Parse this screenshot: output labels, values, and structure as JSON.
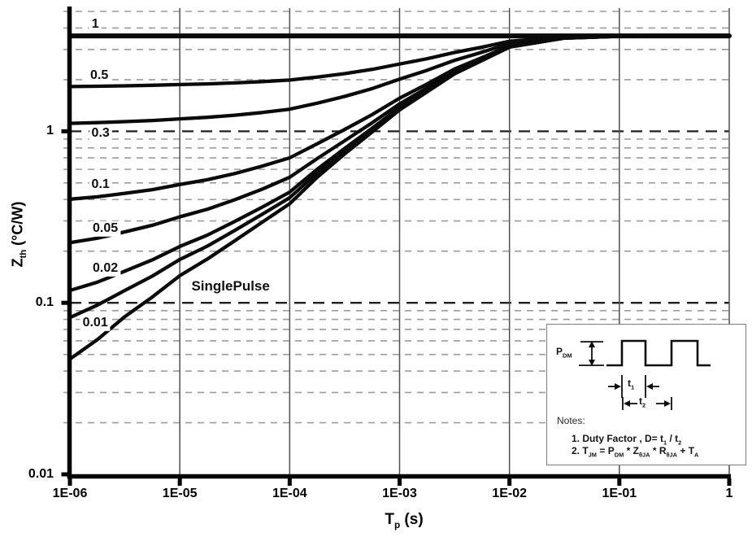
{
  "chart_data": {
    "type": "line",
    "title": "",
    "x_scale": "log",
    "y_scale": "log",
    "xlim": [
      1e-06,
      1
    ],
    "ylim": [
      0.01,
      5
    ],
    "grid": true,
    "legend": "none",
    "xlabel_rich": [
      {
        "t": "T"
      },
      {
        "s": "p"
      },
      {
        "t": "   (s)"
      }
    ],
    "ylabel_rich": [
      {
        "t": "Z"
      },
      {
        "s": "th"
      },
      {
        "t": "   (°C/W)"
      }
    ],
    "x_ticks": [
      {
        "label": "1E-06",
        "value": 1e-06
      },
      {
        "label": "1E-05",
        "value": 1e-05
      },
      {
        "label": "1E-04",
        "value": 0.0001
      },
      {
        "label": "1E-03",
        "value": 0.001
      },
      {
        "label": "1E-02",
        "value": 0.01
      },
      {
        "label": "1E-01",
        "value": 0.1
      },
      {
        "label": "1",
        "value": 1
      }
    ],
    "y_ticks": [
      {
        "label": "1",
        "value": 1
      },
      {
        "label": "0.1",
        "value": 0.1
      },
      {
        "label": "0.01",
        "value": 0.01
      }
    ],
    "gridlines": {
      "minor_y": [
        0.02,
        0.03,
        0.04,
        0.05,
        0.06,
        0.07,
        0.08,
        0.09,
        0.2,
        0.3,
        0.4,
        0.5,
        0.6,
        0.7,
        0.8,
        0.9,
        2,
        3,
        4,
        5
      ],
      "major_y": [
        1,
        0.1
      ],
      "vertical_x": [
        1e-05,
        0.0001,
        0.001,
        0.01,
        0.1,
        1
      ]
    },
    "x": [
      1e-06,
      1.78e-06,
      3.16e-06,
      5.62e-06,
      1e-05,
      1.78e-05,
      3.16e-05,
      5.62e-05,
      0.0001,
      0.000178,
      0.000316,
      0.000562,
      0.001,
      0.00178,
      0.00316,
      0.00562,
      0.01,
      0.0178,
      0.0316,
      0.0562,
      0.1,
      0.178,
      0.316,
      0.562,
      1
    ],
    "series": [
      {
        "name": "duty-factor-1",
        "label": "1",
        "duty_factor": 1,
        "values": [
          3.6,
          3.6,
          3.6,
          3.6,
          3.6,
          3.6,
          3.6,
          3.6,
          3.6,
          3.6,
          3.6,
          3.6,
          3.6,
          3.6,
          3.6,
          3.6,
          3.6,
          3.6,
          3.6,
          3.6,
          3.6,
          3.6,
          3.6,
          3.6,
          3.6
        ]
      },
      {
        "name": "duty-factor-0.5",
        "label": "0.5",
        "duty_factor": 0.5,
        "values": [
          1.823,
          1.831,
          1.841,
          1.854,
          1.872,
          1.89,
          1.915,
          1.948,
          1.989,
          2.07,
          2.169,
          2.295,
          2.466,
          2.648,
          2.88,
          3.092,
          3.348,
          3.444,
          3.546,
          3.569,
          3.591,
          3.596,
          3.6,
          3.6,
          3.6
        ]
      },
      {
        "name": "duty-factor-0.3",
        "label": "0.3",
        "duty_factor": 0.3,
        "values": [
          1.113,
          1.123,
          1.138,
          1.156,
          1.181,
          1.206,
          1.241,
          1.287,
          1.345,
          1.458,
          1.597,
          1.773,
          2.012,
          2.267,
          2.592,
          2.889,
          3.247,
          3.382,
          3.524,
          3.556,
          3.587,
          3.595,
          3.6,
          3.6,
          3.6
        ]
      },
      {
        "name": "duty-factor-0.1",
        "label": "0.1",
        "duty_factor": 0.1,
        "values": [
          0.402,
          0.415,
          0.435,
          0.457,
          0.49,
          0.522,
          0.567,
          0.626,
          0.7,
          0.846,
          1.024,
          1.251,
          1.559,
          1.886,
          2.304,
          2.686,
          3.146,
          3.32,
          3.503,
          3.543,
          3.584,
          3.594,
          3.6,
          3.6,
          3.6
        ]
      },
      {
        "name": "duty-factor-0.05",
        "label": "0.05",
        "duty_factor": 0.05,
        "values": [
          0.224,
          0.238,
          0.259,
          0.283,
          0.317,
          0.351,
          0.399,
          0.46,
          0.539,
          0.693,
          0.881,
          1.121,
          1.445,
          1.791,
          2.232,
          2.636,
          3.121,
          3.304,
          3.497,
          3.54,
          3.583,
          3.593,
          3.6,
          3.6,
          3.6
        ]
      },
      {
        "name": "duty-factor-0.02",
        "label": "0.02",
        "duty_factor": 0.02,
        "values": [
          0.118,
          0.132,
          0.153,
          0.178,
          0.213,
          0.248,
          0.298,
          0.361,
          0.442,
          0.601,
          0.795,
          1.042,
          1.377,
          1.734,
          2.189,
          2.604,
          3.106,
          3.295,
          3.494,
          3.538,
          3.582,
          3.593,
          3.6,
          3.6,
          3.6
        ]
      },
      {
        "name": "duty-factor-0.01",
        "label": "0.01",
        "duty_factor": 0.01,
        "values": [
          0.082,
          0.097,
          0.118,
          0.143,
          0.179,
          0.214,
          0.264,
          0.328,
          0.41,
          0.571,
          0.767,
          1.016,
          1.355,
          1.715,
          2.174,
          2.594,
          3.101,
          3.292,
          3.493,
          3.538,
          3.582,
          3.593,
          3.6,
          3.6,
          3.6
        ]
      },
      {
        "name": "single-pulse",
        "label": "SinglePulse",
        "duty_factor": 0,
        "values": [
          0.047,
          0.061,
          0.083,
          0.108,
          0.144,
          0.18,
          0.23,
          0.295,
          0.378,
          0.54,
          0.738,
          0.99,
          1.332,
          1.696,
          2.16,
          2.585,
          3.096,
          3.289,
          3.493,
          3.537,
          3.582,
          3.593,
          3.6,
          3.6,
          3.6
        ]
      }
    ],
    "annotations": [
      {
        "text": "1",
        "t": 1.7e-06,
        "z": 4.2,
        "big": false
      },
      {
        "text": "0.5",
        "t": 1.85e-06,
        "z": 2.1,
        "big": false
      },
      {
        "text": "0.3",
        "t": 1.9e-06,
        "z": 0.97,
        "big": false
      },
      {
        "text": "0.1",
        "t": 1.9e-06,
        "z": 0.49,
        "big": false
      },
      {
        "text": "0.05",
        "t": 2.1e-06,
        "z": 0.27,
        "big": false
      },
      {
        "text": "0.02",
        "t": 2.1e-06,
        "z": 0.158,
        "big": false
      },
      {
        "text": "0.01",
        "t": 1.7e-06,
        "z": 0.076,
        "big": false
      },
      {
        "text": "SinglePulse",
        "t": 2.9e-05,
        "z": 0.125,
        "big": true
      }
    ],
    "colors": {
      "curve": "#0a0a0a",
      "minor_grid": "#9c9c9c",
      "major_grid": "#1f1f1f",
      "vertical_grid": "#4f4f4f",
      "axis": "#000000",
      "background": "#ffffff"
    }
  },
  "notes_box": {
    "pdm_label_rich": [
      {
        "t": "P"
      },
      {
        "s": "DM"
      }
    ],
    "t1_label_rich": [
      {
        "t": "t"
      },
      {
        "s": "1"
      }
    ],
    "t2_label_rich": [
      {
        "t": "t"
      },
      {
        "s": "2"
      }
    ],
    "notes_title": "Notes:",
    "note1_rich": [
      {
        "t": "1. Duty Factor ,  D= t"
      },
      {
        "s": "1"
      },
      {
        "t": " / t"
      },
      {
        "s": "2"
      }
    ],
    "note2_rich": [
      {
        "t": "2. T"
      },
      {
        "s": "JM"
      },
      {
        "t": "  = P"
      },
      {
        "s": "DM"
      },
      {
        "t": " * Z"
      },
      {
        "s": "θJA"
      },
      {
        "t": " * R"
      },
      {
        "s": "θJA"
      },
      {
        "t": " + T"
      },
      {
        "s": "A"
      }
    ]
  }
}
